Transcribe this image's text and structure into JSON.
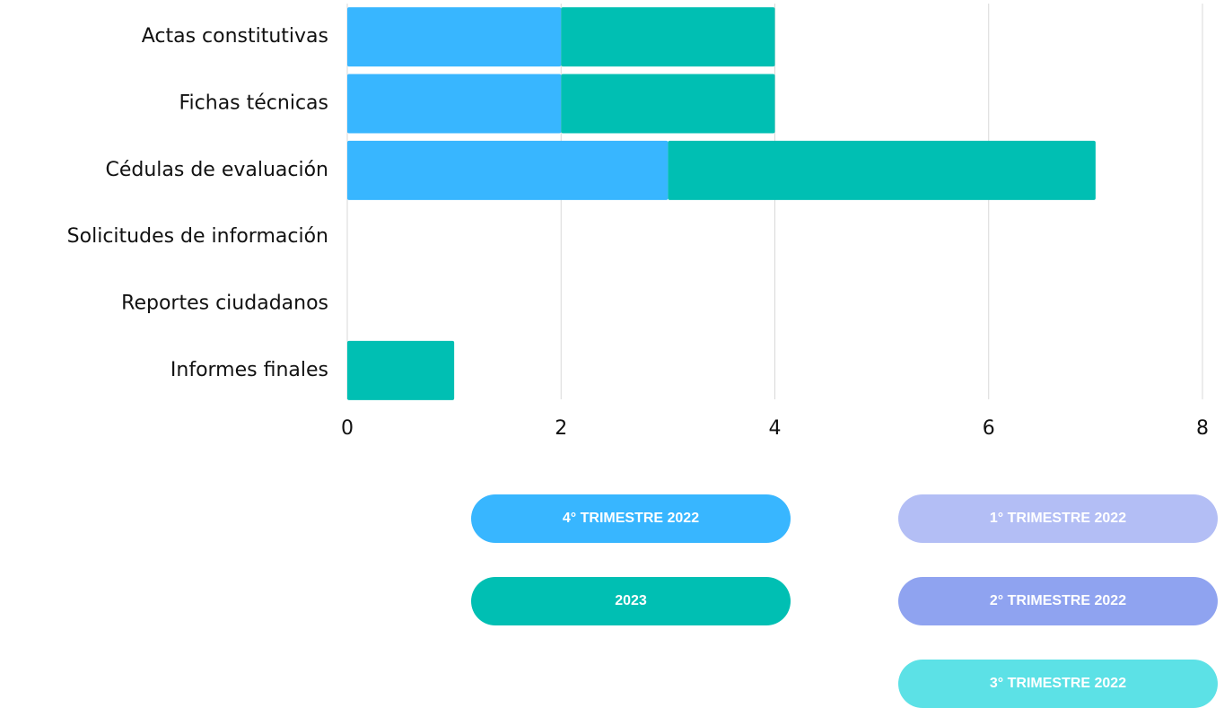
{
  "chart_data": {
    "type": "bar",
    "orientation": "horizontal",
    "stacked": true,
    "categories": [
      "Actas constitutivas",
      "Fichas técnicas",
      "Cédulas de evaluación",
      "Solicitudes de información",
      "Reportes ciudadanos",
      "Informes finales"
    ],
    "series": [
      {
        "name": "4° TRIMESTRE 2022",
        "color": "#38b6ff",
        "values": [
          2,
          2,
          3,
          0,
          0,
          0
        ]
      },
      {
        "name": "2023",
        "color": "#00bfb3",
        "values": [
          2,
          2,
          4,
          0,
          0,
          1
        ]
      },
      {
        "name": "1° TRIMESTRE 2022",
        "color": "#b3bef5",
        "values": [
          0,
          0,
          0,
          0,
          0,
          0
        ]
      },
      {
        "name": "2° TRIMESTRE 2022",
        "color": "#8fa3f0",
        "values": [
          0,
          0,
          0,
          0,
          0,
          0
        ]
      },
      {
        "name": "3° TRIMESTRE 2022",
        "color": "#5ce1e6",
        "values": [
          0,
          0,
          0,
          0,
          0,
          0
        ]
      }
    ],
    "xlim": [
      0,
      8
    ],
    "xticks": [
      0,
      2,
      4,
      6,
      8
    ],
    "grid": true
  }
}
